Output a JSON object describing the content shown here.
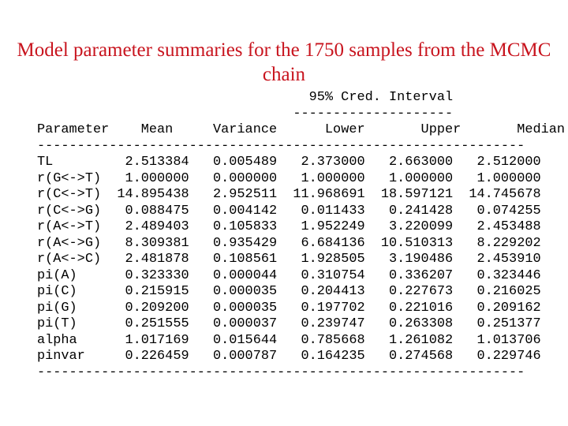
{
  "slide": {
    "title": "Model parameter summaries for the 1750 samples from the MCMC chain",
    "interval_header": "95% Cred. Interval",
    "interval_rule": "--------------------",
    "table_rule": "-------------------------------------------------------------"
  },
  "table": {
    "columns": [
      "Parameter",
      "Mean",
      "Variance",
      "Lower",
      "Upper",
      "Median"
    ],
    "rows": [
      [
        "TL",
        "2.513384",
        "0.005489",
        "2.373000",
        "2.663000",
        "2.512000"
      ],
      [
        "r(G<->T)",
        "1.000000",
        "0.000000",
        "1.000000",
        "1.000000",
        "1.000000"
      ],
      [
        "r(C<->T)",
        "14.895438",
        "2.952511",
        "11.968691",
        "18.597121",
        "14.745678"
      ],
      [
        "r(C<->G)",
        "0.088475",
        "0.004142",
        "0.011433",
        "0.241428",
        "0.074255"
      ],
      [
        "r(A<->T)",
        "2.489403",
        "0.105833",
        "1.952249",
        "3.220099",
        "2.453488"
      ],
      [
        "r(A<->G)",
        "8.309381",
        "0.935429",
        "6.684136",
        "10.510313",
        "8.229202"
      ],
      [
        "r(A<->C)",
        "2.481878",
        "0.108561",
        "1.928505",
        "3.190486",
        "2.453910"
      ],
      [
        "pi(A)",
        "0.323330",
        "0.000044",
        "0.310754",
        "0.336207",
        "0.323446"
      ],
      [
        "pi(C)",
        "0.215915",
        "0.000035",
        "0.204413",
        "0.227673",
        "0.216025"
      ],
      [
        "pi(G)",
        "0.209200",
        "0.000035",
        "0.197702",
        "0.221016",
        "0.209162"
      ],
      [
        "pi(T)",
        "0.251555",
        "0.000037",
        "0.239747",
        "0.263308",
        "0.251377"
      ],
      [
        "alpha",
        "1.017169",
        "0.015644",
        "0.785668",
        "1.261082",
        "1.013706"
      ],
      [
        "pinvar",
        "0.226459",
        "0.000787",
        "0.164235",
        "0.274568",
        "0.229746"
      ]
    ]
  }
}
